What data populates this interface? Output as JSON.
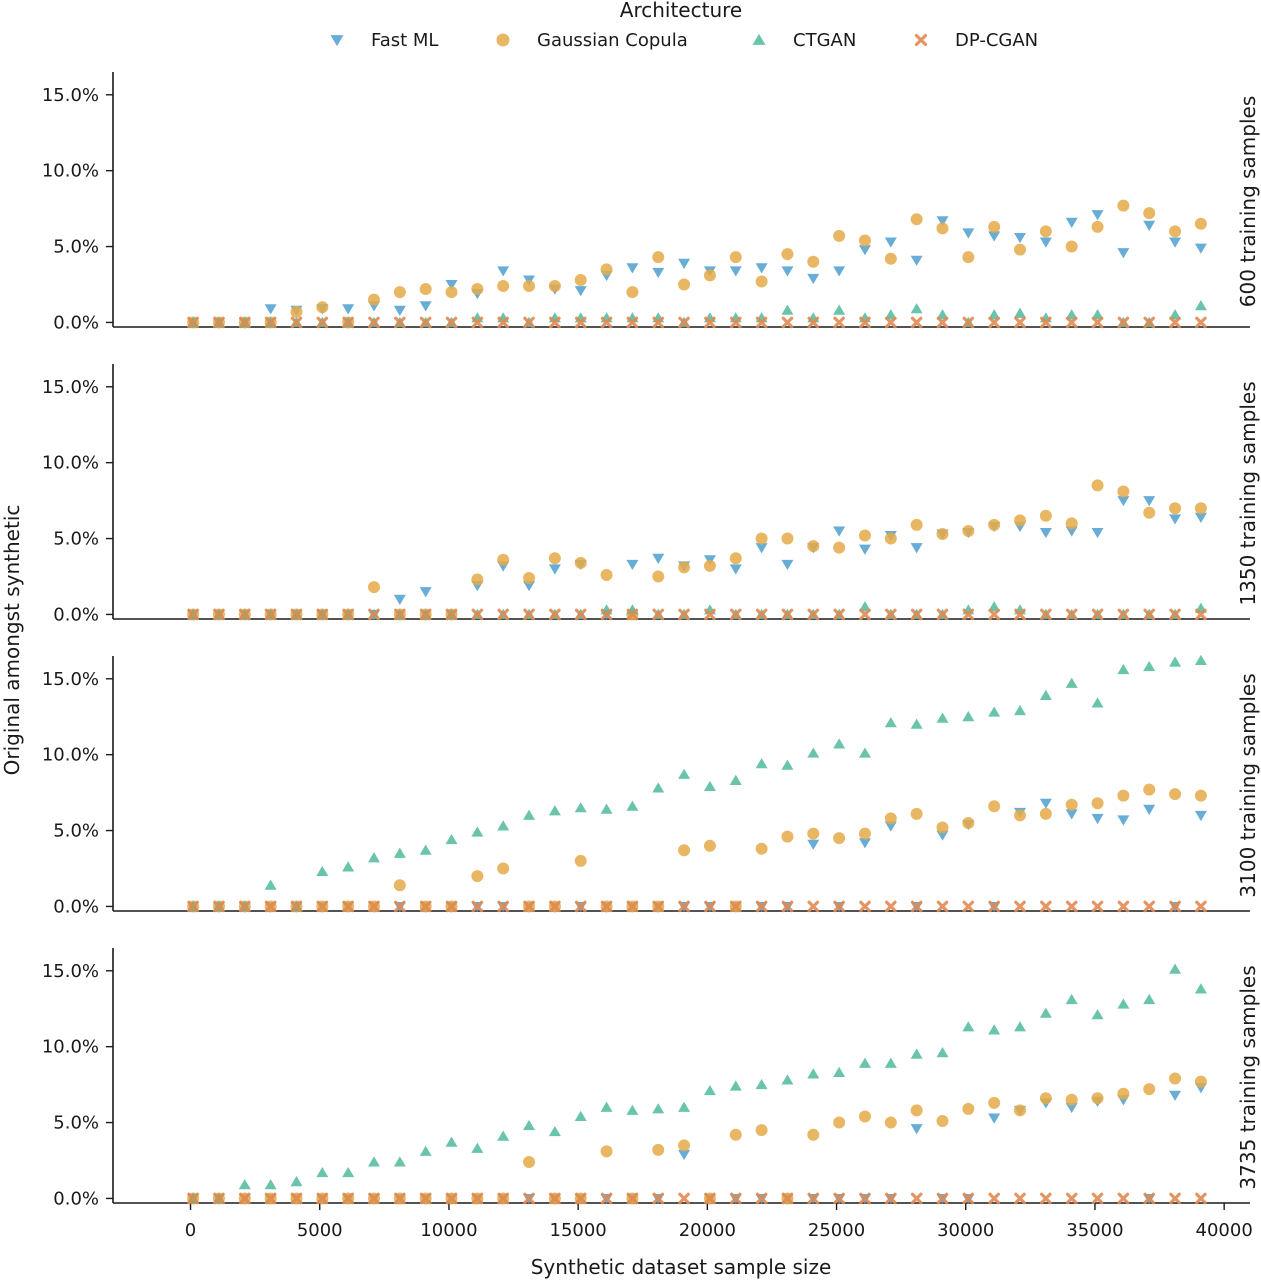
{
  "legend": {
    "title": "Architecture",
    "entries": [
      {
        "name": "Fast ML",
        "color": "#4e9fcf",
        "marker": "triangle-down"
      },
      {
        "name": "Gaussian Copula",
        "color": "#e5aa48",
        "marker": "circle"
      },
      {
        "name": "CTGAN",
        "color": "#4fba9c",
        "marker": "triangle-up"
      },
      {
        "name": "DP-CGAN",
        "color": "#e08a52",
        "marker": "x"
      }
    ]
  },
  "xlabel": "Synthetic dataset sample size",
  "ylabel": "Original amongst synthetic",
  "x_ticks": [
    0,
    5000,
    10000,
    15000,
    20000,
    25000,
    30000,
    35000,
    40000
  ],
  "y_ticks": [
    "0.0%",
    "5.0%",
    "10.0%",
    "15.0%"
  ],
  "chart_data": [
    {
      "type": "scatter",
      "facet": "600 training samples",
      "xlim": [
        -3000,
        41000
      ],
      "ylim": [
        -0.3,
        16.5
      ],
      "y_unit": "%",
      "x": [
        100,
        1100,
        2100,
        3100,
        4100,
        5100,
        6100,
        7100,
        8100,
        9100,
        10100,
        11100,
        12100,
        13100,
        14100,
        15100,
        16100,
        17100,
        18100,
        19100,
        20100,
        21100,
        22100,
        23100,
        24100,
        25100,
        26100,
        27100,
        28100,
        29100,
        30100,
        31100,
        32100,
        33100,
        34100,
        35100,
        36100,
        37100,
        38100,
        39100
      ],
      "series": [
        {
          "name": "Fast ML",
          "values": [
            0,
            0,
            0,
            0.9,
            0.8,
            0.9,
            0.9,
            1.1,
            0.8,
            1.1,
            2.5,
            1.9,
            3.4,
            2.8,
            2.2,
            2.1,
            3.1,
            3.6,
            3.3,
            3.9,
            3.4,
            3.4,
            3.6,
            3.4,
            2.9,
            3.4,
            4.8,
            5.3,
            4.1,
            6.7,
            5.9,
            5.7,
            5.6,
            5.3,
            6.6,
            7.1,
            4.6,
            6.4,
            5.3,
            4.9
          ]
        },
        {
          "name": "Gaussian Copula",
          "values": [
            0,
            0,
            0,
            0,
            0.7,
            1.0,
            0,
            1.5,
            2.0,
            2.2,
            2.0,
            2.2,
            2.4,
            2.4,
            2.4,
            2.8,
            3.5,
            2.0,
            4.3,
            2.5,
            3.1,
            4.3,
            2.7,
            4.5,
            4.0,
            5.7,
            5.4,
            4.2,
            6.8,
            6.2,
            4.3,
            6.3,
            4.8,
            6.0,
            5.0,
            6.3,
            7.7,
            7.2,
            6.0,
            6.5
          ]
        },
        {
          "name": "CTGAN",
          "values": [
            0,
            0,
            0,
            0,
            0,
            0,
            0,
            0,
            0,
            0,
            0,
            0.3,
            0.3,
            0,
            0.3,
            0.3,
            0.3,
            0.3,
            0.3,
            0,
            0.3,
            0.3,
            0.3,
            0.8,
            0.3,
            0.8,
            0.3,
            0.5,
            0.9,
            0.5,
            0,
            0.5,
            0.6,
            0.3,
            0.5,
            0.5,
            0,
            0,
            0.5,
            1.1
          ]
        },
        {
          "name": "DP-CGAN",
          "values": [
            0,
            0,
            0,
            0,
            0,
            0,
            0,
            0,
            0,
            0,
            0,
            0,
            0,
            0,
            0,
            0,
            0,
            0,
            0,
            0,
            0,
            0,
            0,
            0,
            0,
            0,
            0,
            0,
            0,
            0,
            0,
            0,
            0,
            0,
            0,
            0,
            0,
            0,
            0,
            0
          ]
        }
      ]
    },
    {
      "type": "scatter",
      "facet": "1350 training samples",
      "xlim": [
        -3000,
        41000
      ],
      "ylim": [
        -0.3,
        16.5
      ],
      "y_unit": "%",
      "x": [
        100,
        1100,
        2100,
        3100,
        4100,
        5100,
        6100,
        7100,
        8100,
        9100,
        10100,
        11100,
        12100,
        13100,
        14100,
        15100,
        16100,
        17100,
        18100,
        19100,
        20100,
        21100,
        22100,
        23100,
        24100,
        25100,
        26100,
        27100,
        28100,
        29100,
        30100,
        31100,
        32100,
        33100,
        34100,
        35100,
        36100,
        37100,
        38100,
        39100
      ],
      "series": [
        {
          "name": "Fast ML",
          "values": [
            0,
            0,
            0,
            0,
            0,
            0,
            0,
            0,
            1.0,
            1.5,
            0,
            1.9,
            3.2,
            1.9,
            3.0,
            3.3,
            0,
            3.3,
            3.7,
            3.2,
            3.6,
            3.0,
            4.4,
            3.3,
            4.4,
            5.5,
            4.3,
            5.2,
            4.4,
            5.3,
            5.4,
            5.8,
            5.8,
            5.4,
            5.5,
            5.4,
            7.5,
            7.5,
            6.3,
            6.4
          ]
        },
        {
          "name": "Gaussian Copula",
          "values": [
            0,
            0,
            0,
            0,
            0,
            0,
            0,
            1.8,
            0,
            0,
            0,
            2.3,
            3.6,
            2.4,
            3.7,
            3.4,
            2.6,
            0,
            2.5,
            3.1,
            3.2,
            3.7,
            5.0,
            5.0,
            4.5,
            4.4,
            5.2,
            5.0,
            5.9,
            5.3,
            5.5,
            5.9,
            6.2,
            6.5,
            6.0,
            8.5,
            8.1,
            6.7,
            7.0,
            7.0
          ]
        },
        {
          "name": "CTGAN",
          "values": [
            0,
            0,
            0,
            0,
            0,
            0,
            0,
            0,
            0,
            0,
            0,
            0,
            0,
            0,
            0,
            0,
            0.3,
            0.3,
            0,
            0,
            0.3,
            0,
            0,
            0,
            0,
            0,
            0.5,
            0,
            0,
            0,
            0.3,
            0.5,
            0.3,
            0,
            0,
            0,
            0,
            0,
            0,
            0.4
          ]
        },
        {
          "name": "DP-CGAN",
          "values": [
            0,
            0,
            0,
            0,
            0,
            0,
            0,
            0,
            0,
            0,
            0,
            0,
            0,
            0,
            0,
            0,
            0,
            0,
            0,
            0,
            0,
            0,
            0,
            0,
            0,
            0,
            0,
            0,
            0,
            0,
            0,
            0,
            0,
            0,
            0,
            0,
            0,
            0,
            0,
            0
          ]
        }
      ]
    },
    {
      "type": "scatter",
      "facet": "3100 training samples",
      "xlim": [
        -3000,
        41000
      ],
      "ylim": [
        -0.3,
        16.5
      ],
      "y_unit": "%",
      "x": [
        100,
        1100,
        2100,
        3100,
        4100,
        5100,
        6100,
        7100,
        8100,
        9100,
        10100,
        11100,
        12100,
        13100,
        14100,
        15100,
        16100,
        17100,
        18100,
        19100,
        20100,
        21100,
        22100,
        23100,
        24100,
        25100,
        26100,
        27100,
        28100,
        29100,
        30100,
        31100,
        32100,
        33100,
        34100,
        35100,
        36100,
        37100,
        38100,
        39100
      ],
      "series": [
        {
          "name": "Fast ML",
          "values": [
            0,
            0,
            0,
            0,
            0,
            0,
            0,
            0,
            0,
            0,
            0,
            0,
            0,
            0,
            0,
            0,
            0,
            0,
            0,
            0,
            0,
            0,
            0,
            0,
            4.1,
            0,
            4.2,
            5.3,
            0,
            4.7,
            5.4,
            0,
            6.2,
            6.8,
            6.1,
            5.8,
            5.7,
            6.4,
            0,
            6.0
          ]
        },
        {
          "name": "Gaussian Copula",
          "values": [
            0,
            0,
            0,
            0,
            0,
            0,
            0,
            0,
            1.4,
            0,
            0,
            2.0,
            2.5,
            0,
            0,
            3.0,
            0,
            0,
            0,
            3.7,
            4.0,
            0,
            3.8,
            4.6,
            4.8,
            4.5,
            4.8,
            5.8,
            6.1,
            5.2,
            5.5,
            6.6,
            6.0,
            6.1,
            6.7,
            6.8,
            7.3,
            7.7,
            7.4,
            7.3
          ]
        },
        {
          "name": "CTGAN",
          "values": [
            0,
            0,
            0,
            1.4,
            0,
            2.3,
            2.6,
            3.2,
            3.5,
            3.7,
            4.4,
            4.9,
            5.3,
            6.0,
            6.3,
            6.5,
            6.4,
            6.6,
            7.8,
            8.7,
            7.9,
            8.3,
            9.4,
            9.3,
            10.1,
            10.7,
            10.1,
            12.1,
            12.0,
            12.4,
            12.5,
            12.8,
            12.9,
            13.9,
            14.7,
            13.4,
            15.6,
            15.8,
            16.1,
            16.2
          ]
        },
        {
          "name": "DP-CGAN",
          "values": [
            0,
            0,
            0,
            0,
            0,
            0,
            0,
            0,
            0,
            0,
            0,
            0,
            0,
            0,
            0,
            0,
            0,
            0,
            0,
            0,
            0,
            0,
            0,
            0,
            0,
            0,
            0,
            0,
            0,
            0,
            0,
            0,
            0,
            0,
            0,
            0,
            0,
            0,
            0,
            0
          ]
        }
      ]
    },
    {
      "type": "scatter",
      "facet": "3735 training samples",
      "xlim": [
        -3000,
        41000
      ],
      "ylim": [
        -0.3,
        16.5
      ],
      "y_unit": "%",
      "x": [
        100,
        1100,
        2100,
        3100,
        4100,
        5100,
        6100,
        7100,
        8100,
        9100,
        10100,
        11100,
        12100,
        13100,
        14100,
        15100,
        16100,
        17100,
        18100,
        19100,
        20100,
        21100,
        22100,
        23100,
        24100,
        25100,
        26100,
        27100,
        28100,
        29100,
        30100,
        31100,
        32100,
        33100,
        34100,
        35100,
        36100,
        37100,
        38100,
        39100
      ],
      "series": [
        {
          "name": "Fast ML",
          "values": [
            0,
            0,
            0,
            0,
            0,
            0,
            0,
            0,
            0,
            0,
            0,
            0,
            0,
            0,
            0,
            0,
            0,
            0,
            0,
            2.9,
            0,
            0,
            0,
            0,
            0,
            0,
            0,
            0,
            4.6,
            0,
            0,
            5.3,
            5.8,
            6.3,
            6.0,
            6.4,
            6.5,
            0,
            6.8,
            7.3
          ]
        },
        {
          "name": "Gaussian Copula",
          "values": [
            0,
            0,
            0,
            0,
            0,
            0,
            0,
            0,
            0,
            0,
            0,
            0,
            0,
            2.4,
            0,
            0,
            3.1,
            0,
            3.2,
            3.5,
            0,
            4.2,
            4.5,
            0,
            4.2,
            5.0,
            5.4,
            5.0,
            5.8,
            5.1,
            5.9,
            6.3,
            5.8,
            6.6,
            6.5,
            6.6,
            6.9,
            7.2,
            7.9,
            7.7
          ]
        },
        {
          "name": "CTGAN",
          "values": [
            0,
            0,
            0.9,
            0.9,
            1.1,
            1.7,
            1.7,
            2.4,
            2.4,
            3.1,
            3.7,
            3.3,
            4.1,
            4.8,
            4.4,
            5.4,
            6.0,
            5.8,
            5.9,
            6.0,
            7.1,
            7.4,
            7.5,
            7.8,
            8.2,
            8.3,
            8.9,
            8.9,
            9.5,
            9.6,
            11.3,
            11.1,
            11.3,
            12.2,
            13.1,
            12.1,
            12.8,
            13.1,
            15.1,
            13.8
          ]
        },
        {
          "name": "DP-CGAN",
          "values": [
            0,
            0,
            0,
            0,
            0,
            0,
            0,
            0,
            0,
            0,
            0,
            0,
            0,
            0,
            0,
            0,
            0,
            0,
            0,
            0,
            0,
            0,
            0,
            0,
            0,
            0,
            0,
            0,
            0,
            0,
            0,
            0,
            0,
            0,
            0,
            0,
            0,
            0,
            0,
            0
          ]
        }
      ]
    }
  ]
}
